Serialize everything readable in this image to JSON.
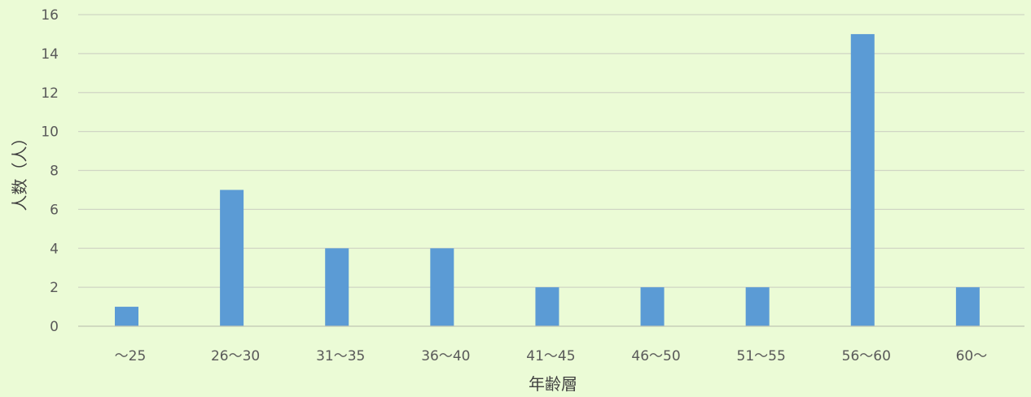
{
  "chart_data": {
    "type": "bar",
    "title": "",
    "xlabel": "年齢層",
    "ylabel": "人数（人）",
    "categories": [
      "〜25",
      "26〜30",
      "31〜35",
      "36〜40",
      "41〜45",
      "46〜50",
      "51〜55",
      "56〜60",
      "60〜"
    ],
    "values": [
      1,
      7,
      4,
      4,
      2,
      2,
      2,
      15,
      2
    ],
    "ylim": [
      0,
      16
    ],
    "yticks": [
      0,
      2,
      4,
      6,
      8,
      10,
      12,
      14,
      16
    ],
    "grid": true,
    "legend": "none",
    "bar_color": "#5b9bd5"
  }
}
